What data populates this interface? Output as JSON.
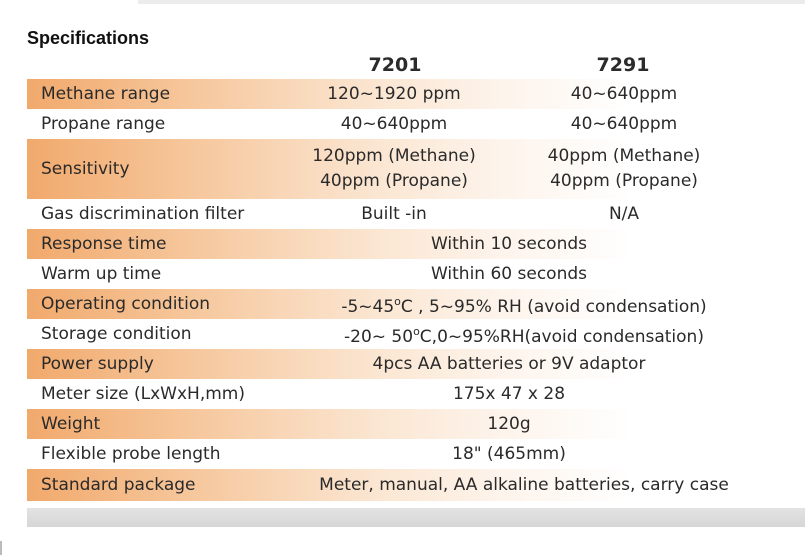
{
  "heading": "Specifications",
  "columns": [
    "7201",
    "7291"
  ],
  "rows": {
    "methane": {
      "label": "Methane range",
      "v1": "120~1920 ppm",
      "v2": "40~640ppm"
    },
    "propane": {
      "label": "Propane range",
      "v1": "40~640ppm",
      "v2": "40~640ppm"
    },
    "sensitivity": {
      "label": "Sensitivity",
      "v1_line1": "120ppm (Methane)",
      "v1_line2": "40ppm (Propane)",
      "v2_line1": "40ppm (Methane)",
      "v2_line2": "40ppm (Propane)"
    },
    "filter": {
      "label": "Gas discrimination filter",
      "v1": "Built -in",
      "v2": "N/A"
    },
    "response": {
      "label": "Response time",
      "value": "Within 10 seconds"
    },
    "warmup": {
      "label": "Warm up time",
      "value": "Within 60 seconds"
    },
    "operating": {
      "label": "Operating condition",
      "pre": "-5~45",
      "sup": "o",
      "post": "C , 5~95% RH (avoid condensation)"
    },
    "storage": {
      "label": "Storage condition",
      "pre": "-20~ 50",
      "sup": "o",
      "post": "C,0~95%RH(avoid condensation)"
    },
    "power": {
      "label": "Power supply",
      "value": "4pcs AA batteries or 9V adaptor"
    },
    "size": {
      "label": "Meter size (LxWxH,mm)",
      "value": "175x 47 x 28"
    },
    "weight": {
      "label": "Weight",
      "value": "120g"
    },
    "probe": {
      "label": "Flexible probe length",
      "value": "18\" (465mm)"
    },
    "package": {
      "label": "Standard package",
      "value": "Meter, manual, AA alkaline batteries, carry case"
    }
  }
}
